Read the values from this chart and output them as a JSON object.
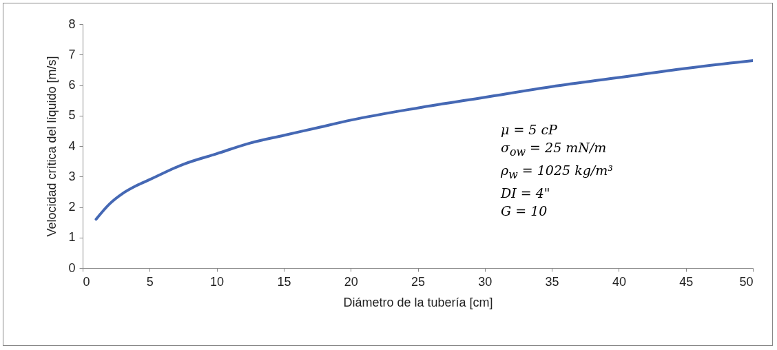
{
  "chart_data": {
    "type": "line",
    "xlabel": "Diámetro de la tubería [cm]",
    "ylabel": "Velocidad crítica del líquido [m/s]",
    "x": [
      1,
      2,
      3,
      4,
      5,
      7.5,
      10,
      12.5,
      15,
      17.5,
      20,
      25,
      30,
      35,
      40,
      45,
      50
    ],
    "series": [
      {
        "color": "#4568b4",
        "values": [
          1.6,
          2.1,
          2.45,
          2.7,
          2.9,
          3.4,
          3.75,
          4.1,
          4.35,
          4.6,
          4.85,
          5.25,
          5.6,
          5.95,
          6.25,
          6.55,
          6.8
        ]
      }
    ],
    "xlim": [
      0,
      50
    ],
    "xticks": [
      0,
      5,
      10,
      15,
      20,
      25,
      30,
      35,
      40,
      45,
      50
    ],
    "ylim": [
      0,
      8
    ],
    "yticks": [
      0,
      1,
      2,
      3,
      4,
      5,
      6,
      7,
      8
    ],
    "grid": false,
    "marker": "none",
    "line_style": "solid",
    "annotations": [
      "μ = 5 cP",
      "σ$_{ow}$ = 25 mN/m",
      "ρ$_{w}$ = 1025 kg/m³",
      "DI = 4\"",
      "G = 10"
    ]
  }
}
